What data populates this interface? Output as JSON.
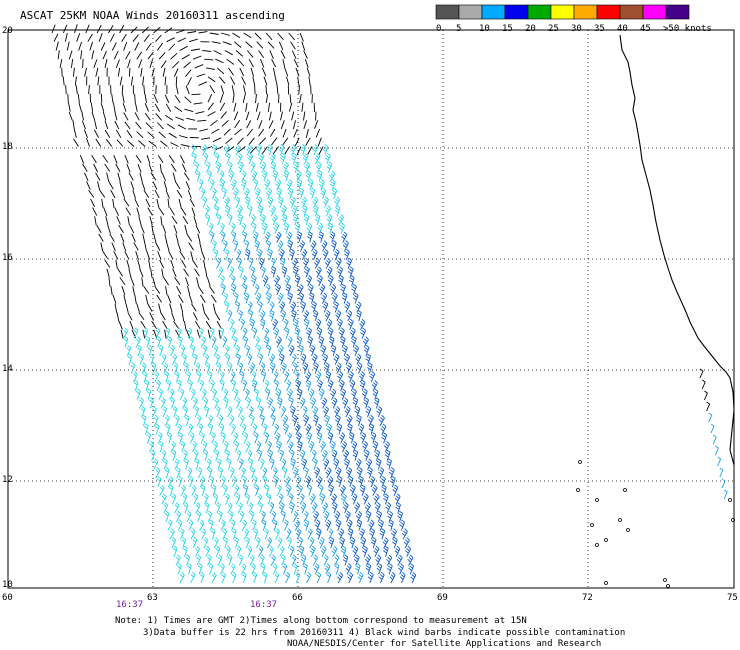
{
  "title": "ASCAT 25KM NOAA Winds 20160311 ascending",
  "legend": {
    "labels": [
      "0",
      "5",
      "10",
      "15",
      "20",
      "25",
      "30",
      "35",
      "40",
      "45",
      ">50 knots"
    ],
    "colors": [
      "#555555",
      "#aaaaaa",
      "#00aaff",
      "#0000ee",
      "#00aa00",
      "#ffff00",
      "#ffaa00",
      "#ff0000",
      "#a05030",
      "#ff00ff",
      "#440088"
    ]
  },
  "map": {
    "lat_ticks": [
      "20",
      "18",
      "16",
      "14",
      "12",
      "10"
    ],
    "lon_ticks": [
      "60",
      "63",
      "66",
      "69",
      "72",
      "75"
    ],
    "time_labels": [
      "16:37",
      "16:37"
    ],
    "barb_colors": {
      "contaminated": "#000000",
      "cyan": "#22d4e8",
      "blue": "#0a5ac8",
      "lightblue": "#1aa0e8"
    }
  },
  "notes": {
    "line1": "Note: 1) Times are GMT 2)Times along bottom correspond to measurement at 15N",
    "line2": "3)Data buffer is 22 hrs from 20160311 4) Black wind barbs indicate possible contamination",
    "line3": "NOAA/NESDIS/Center for Satellite Applications and Research"
  }
}
